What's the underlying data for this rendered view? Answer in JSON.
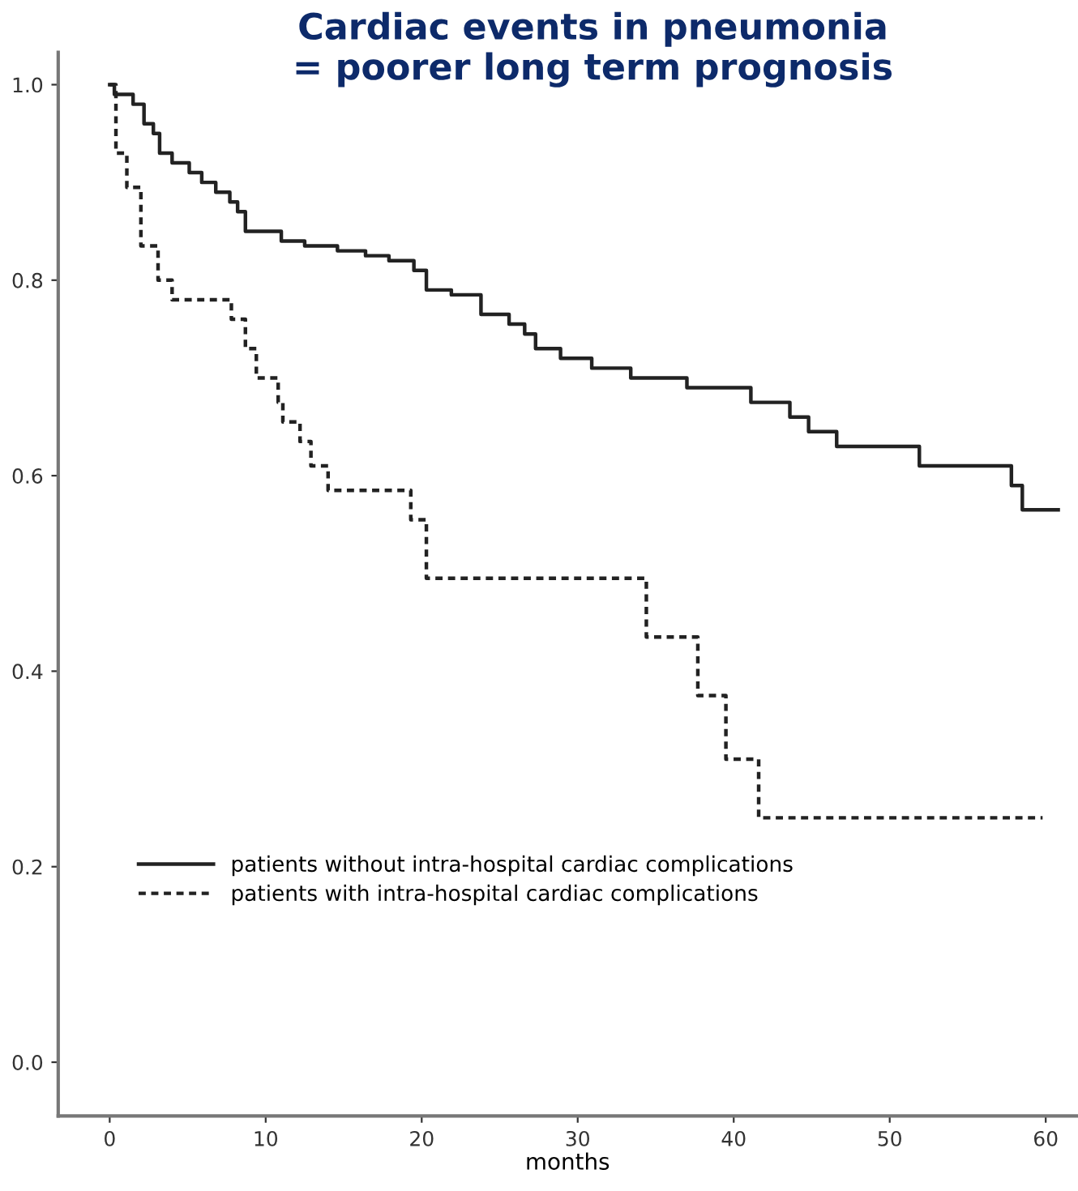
{
  "chart_data": {
    "type": "step",
    "title": "Cardiac events in pneumonia\n= poorer long term prognosis",
    "xlabel": "months",
    "xlim": [
      -3.3,
      62
    ],
    "ylim": [
      -0.055,
      1.033
    ],
    "xticks": [
      0,
      10,
      20,
      30,
      40,
      50,
      60
    ],
    "yticks": [
      {
        "value": 0,
        "label": "0.0"
      },
      {
        "value": 0.2,
        "label": "0.2"
      },
      {
        "value": 0.4,
        "label": "0.4"
      },
      {
        "value": 0.6,
        "label": "0.6"
      },
      {
        "value": 0.8,
        "label": "0.8"
      },
      {
        "value": 1,
        "label": "1.0"
      }
    ],
    "grid": false,
    "legend": "bottom left",
    "marker": "none",
    "series": [
      {
        "name": "patients without intra-hospital cardiac complications",
        "color": "#222222",
        "line_style": "solid",
        "x": [
          0,
          0.3,
          1.5,
          2.2,
          2.8,
          3.2,
          4,
          5.1,
          5.9,
          6.8,
          7.7,
          8.2,
          8.7,
          11,
          12.5,
          14.6,
          16.4,
          17.9,
          19.5,
          20.3,
          21.9,
          23.8,
          25.6,
          26.6,
          27.3,
          28.9,
          30.9,
          33.4,
          37,
          41.1,
          43.6,
          44.8,
          46.6,
          51.9,
          57.8,
          58.5,
          60.8
        ],
        "values": [
          1.0,
          0.99,
          0.98,
          0.96,
          0.95,
          0.93,
          0.92,
          0.91,
          0.9,
          0.89,
          0.88,
          0.87,
          0.85,
          0.84,
          0.835,
          0.83,
          0.825,
          0.82,
          0.81,
          0.79,
          0.785,
          0.765,
          0.755,
          0.745,
          0.73,
          0.72,
          0.71,
          0.7,
          0.69,
          0.675,
          0.66,
          0.645,
          0.63,
          0.61,
          0.59,
          0.565,
          0.565
        ]
      },
      {
        "name": "patients with intra-hospital cardiac complications",
        "color": "#222222",
        "line_style": "dotted",
        "x": [
          0,
          0.4,
          1.1,
          2.0,
          3.1,
          4.0,
          7.8,
          8.7,
          9.4,
          10.8,
          11.1,
          12.2,
          12.9,
          14.0,
          19.3,
          20.3,
          34.4,
          37.7,
          39.5,
          41.6,
          59.8
        ],
        "values": [
          1.0,
          0.93,
          0.895,
          0.835,
          0.8,
          0.78,
          0.76,
          0.73,
          0.7,
          0.675,
          0.655,
          0.635,
          0.61,
          0.585,
          0.555,
          0.495,
          0.435,
          0.375,
          0.31,
          0.25,
          0.25
        ]
      }
    ]
  }
}
